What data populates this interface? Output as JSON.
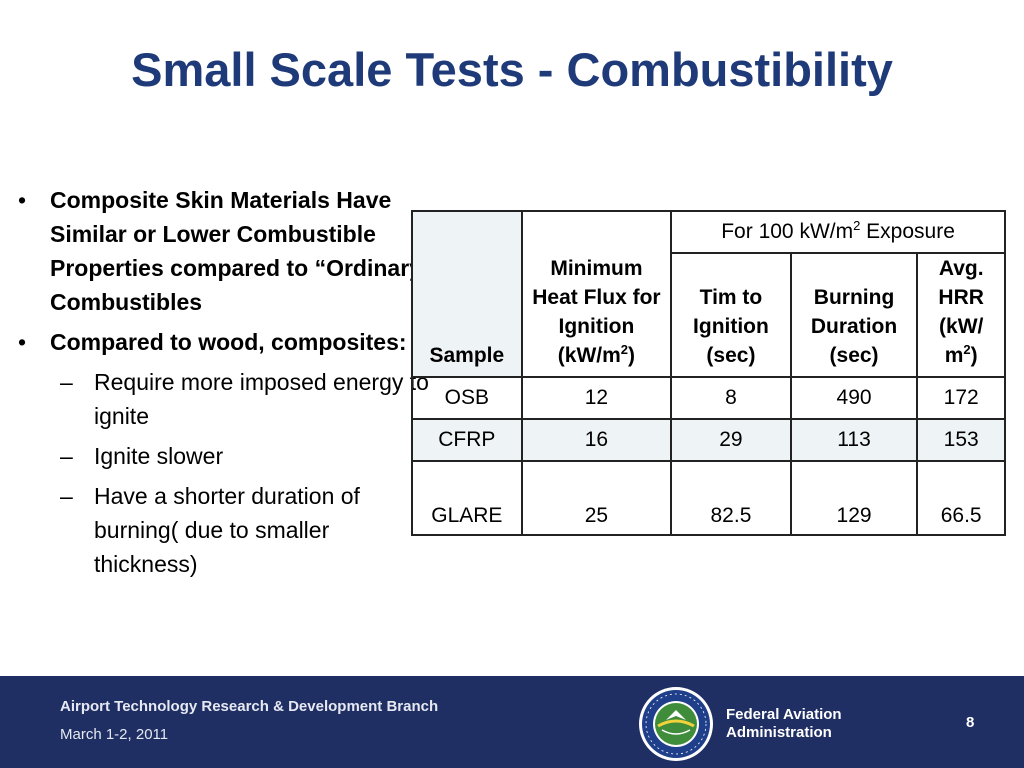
{
  "slide": {
    "title": "Small Scale Tests - Combustibility",
    "bullets": [
      {
        "mark": "•",
        "text": "Composite Skin Materials Have Similar or Lower Combustible Properties compared to “Ordinary” Combustibles"
      },
      {
        "mark": "•",
        "text": "Compared to wood, composites:"
      }
    ],
    "sub_bullets": [
      {
        "mark": "–",
        "text": "Require more imposed energy to ignite"
      },
      {
        "mark": "–",
        "text": "Ignite slower"
      },
      {
        "mark": "–",
        "text": "Have a shorter duration of burning( due to smaller thickness)"
      }
    ]
  },
  "table": {
    "group_header": {
      "prefix": "For 100 kW/m",
      "sup": "2",
      "suffix": " Exposure"
    },
    "headers": {
      "sample": "Sample",
      "heat_flux": {
        "text": "Minimum Heat Flux for Ignition (kW/m",
        "sup": "2",
        "close": ")"
      },
      "time": "Tim to Ignition (sec)",
      "duration": "Burning Duration (sec)",
      "hrr": {
        "text": "Avg. HRR (kW/ m",
        "sup": "2",
        "close": ")"
      }
    },
    "rows": [
      {
        "sample": "OSB",
        "heat_flux": "12",
        "time": "8",
        "duration": "490",
        "hrr": "172"
      },
      {
        "sample": "CFRP",
        "heat_flux": "16",
        "time": "29",
        "duration": "113",
        "hrr": "153"
      },
      {
        "sample": "GLARE",
        "heat_flux": "25",
        "time": "82.5",
        "duration": "129",
        "hrr": "66.5"
      }
    ]
  },
  "footer": {
    "branch": "Airport Technology Research & Development Branch",
    "date": "March 1-2, 2011",
    "org_line1": "Federal Aviation",
    "org_line2": "Administration",
    "page_number": "8"
  },
  "colors": {
    "title": "#1f3a78",
    "footer_bg": "#1f2e63",
    "table_shade": "#eef3f6"
  },
  "icons": {
    "seal": "faa-seal-icon"
  }
}
